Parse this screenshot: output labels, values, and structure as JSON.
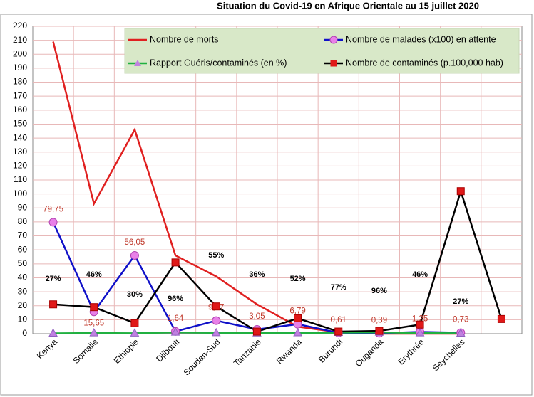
{
  "chart_data": {
    "type": "line",
    "title": "Situation du Covid-19 en Afrique Orientale au 15 juillet 2020",
    "categories": [
      "Kenya",
      "Somalie",
      "Ethiopie",
      "Djibouti",
      "Soudan-Sud",
      "Tanzanie",
      "Rwanda",
      "Burundi",
      "Ouganda",
      "Erythrée",
      "Seychelles",
      null
    ],
    "series": [
      {
        "name": "Nombre de morts",
        "color": "#e02020",
        "marker": "none",
        "values": [
          209,
          93,
          146,
          56,
          41,
          21,
          5,
          1,
          0,
          0,
          0,
          null
        ]
      },
      {
        "name": "Nombre de malades (x100) en attente",
        "color": "#1010c8",
        "marker": "circle",
        "marker_color": "#e880e8",
        "values": [
          79.75,
          15.65,
          56.05,
          1.64,
          9.37,
          3.05,
          6.79,
          0.61,
          0.39,
          1.25,
          0.73,
          null
        ],
        "value_labels": [
          "79,75",
          "15,65",
          "56,05",
          "1,64",
          "9,37",
          "3,05",
          "6,79",
          "0,61",
          "0,39",
          "1,25",
          "0,73",
          null
        ]
      },
      {
        "name": "Rapport Guéris/contaminés (en %)",
        "color": "#20b040",
        "marker": "triangle",
        "marker_color": "#c080e0",
        "values": [
          0.27,
          0.46,
          0.3,
          0.96,
          0.55,
          0.36,
          0.52,
          0.77,
          0.96,
          0.46,
          0.27,
          null
        ],
        "value_labels": [
          "27%",
          "46%",
          "30%",
          "96%",
          "55%",
          "36%",
          "52%",
          "77%",
          "96%",
          "46%",
          "27%",
          null
        ]
      },
      {
        "name": "Nombre de contaminés (p.100,000 hab)",
        "color": "#000000",
        "marker": "square",
        "marker_color": "#e01818",
        "values": [
          21,
          19,
          7.5,
          51,
          19.5,
          1.5,
          11,
          1.5,
          2,
          6.5,
          102,
          10.5
        ]
      }
    ],
    "ylim": [
      0,
      220
    ],
    "yticks": [
      0,
      10,
      20,
      30,
      40,
      50,
      60,
      70,
      80,
      90,
      100,
      110,
      120,
      130,
      140,
      150,
      160,
      170,
      180,
      190,
      200,
      210,
      220
    ],
    "grid": true
  }
}
